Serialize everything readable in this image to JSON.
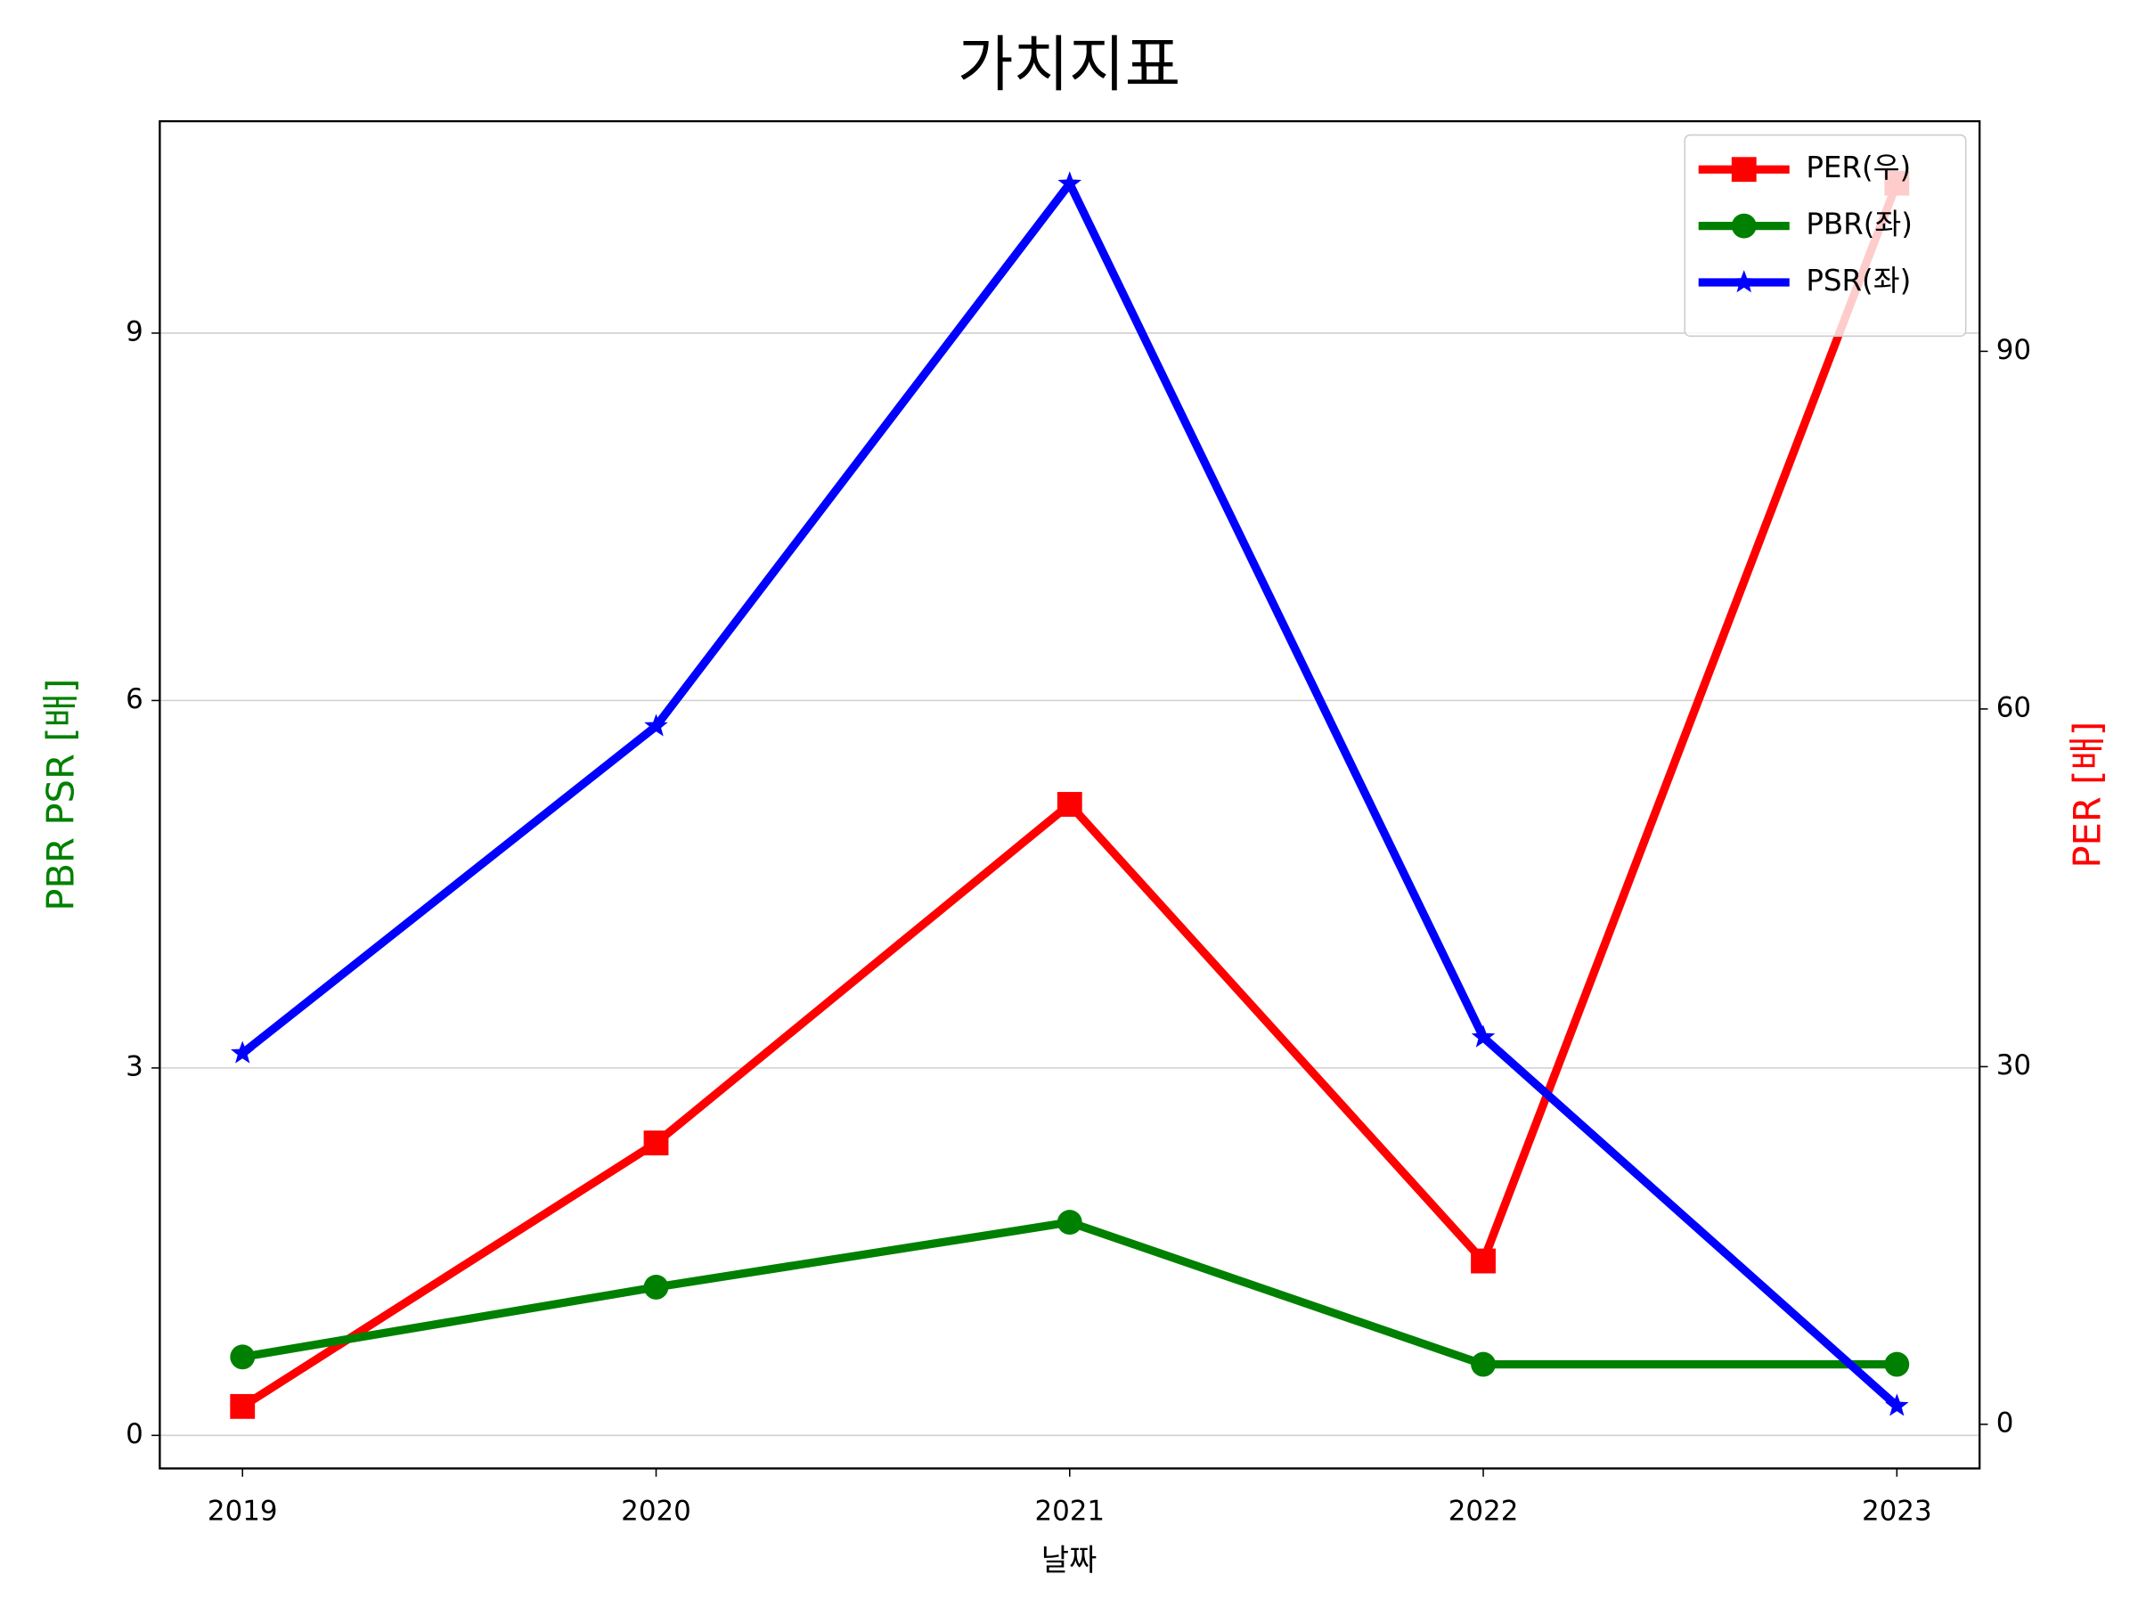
{
  "chart_data": {
    "type": "line",
    "title": "가치지표",
    "xlabel": "날짜",
    "ylabel": "PBR PSR [배]",
    "y2label": "PER [배]",
    "ylabel_color": "green",
    "y2label_color": "red",
    "x": [
      2019,
      2020,
      2021,
      2022,
      2023
    ],
    "xlim": [
      2018.8,
      2023.2
    ],
    "xticks": [
      2019,
      2020,
      2021,
      2022,
      2023
    ],
    "ylim": [
      -0.27,
      10.73
    ],
    "yticks": [
      0,
      3,
      6,
      9
    ],
    "y2lim": [
      -3.7,
      109.3
    ],
    "y2ticks": [
      0,
      30,
      60,
      90
    ],
    "grid": true,
    "legend": "upper right",
    "series": [
      {
        "name": "PER(우)",
        "color": "red",
        "marker": "square",
        "axis": "y2",
        "values": [
          1.5,
          23.6,
          52.0,
          13.7,
          104.1
        ]
      },
      {
        "name": "PBR(좌)",
        "color": "green",
        "marker": "circle",
        "values": [
          0.64,
          1.21,
          1.74,
          0.58,
          0.58
        ]
      },
      {
        "name": "PSR(좌)",
        "color": "blue",
        "marker": "star",
        "values": [
          3.12,
          5.79,
          10.22,
          3.25,
          0.24
        ]
      }
    ]
  }
}
